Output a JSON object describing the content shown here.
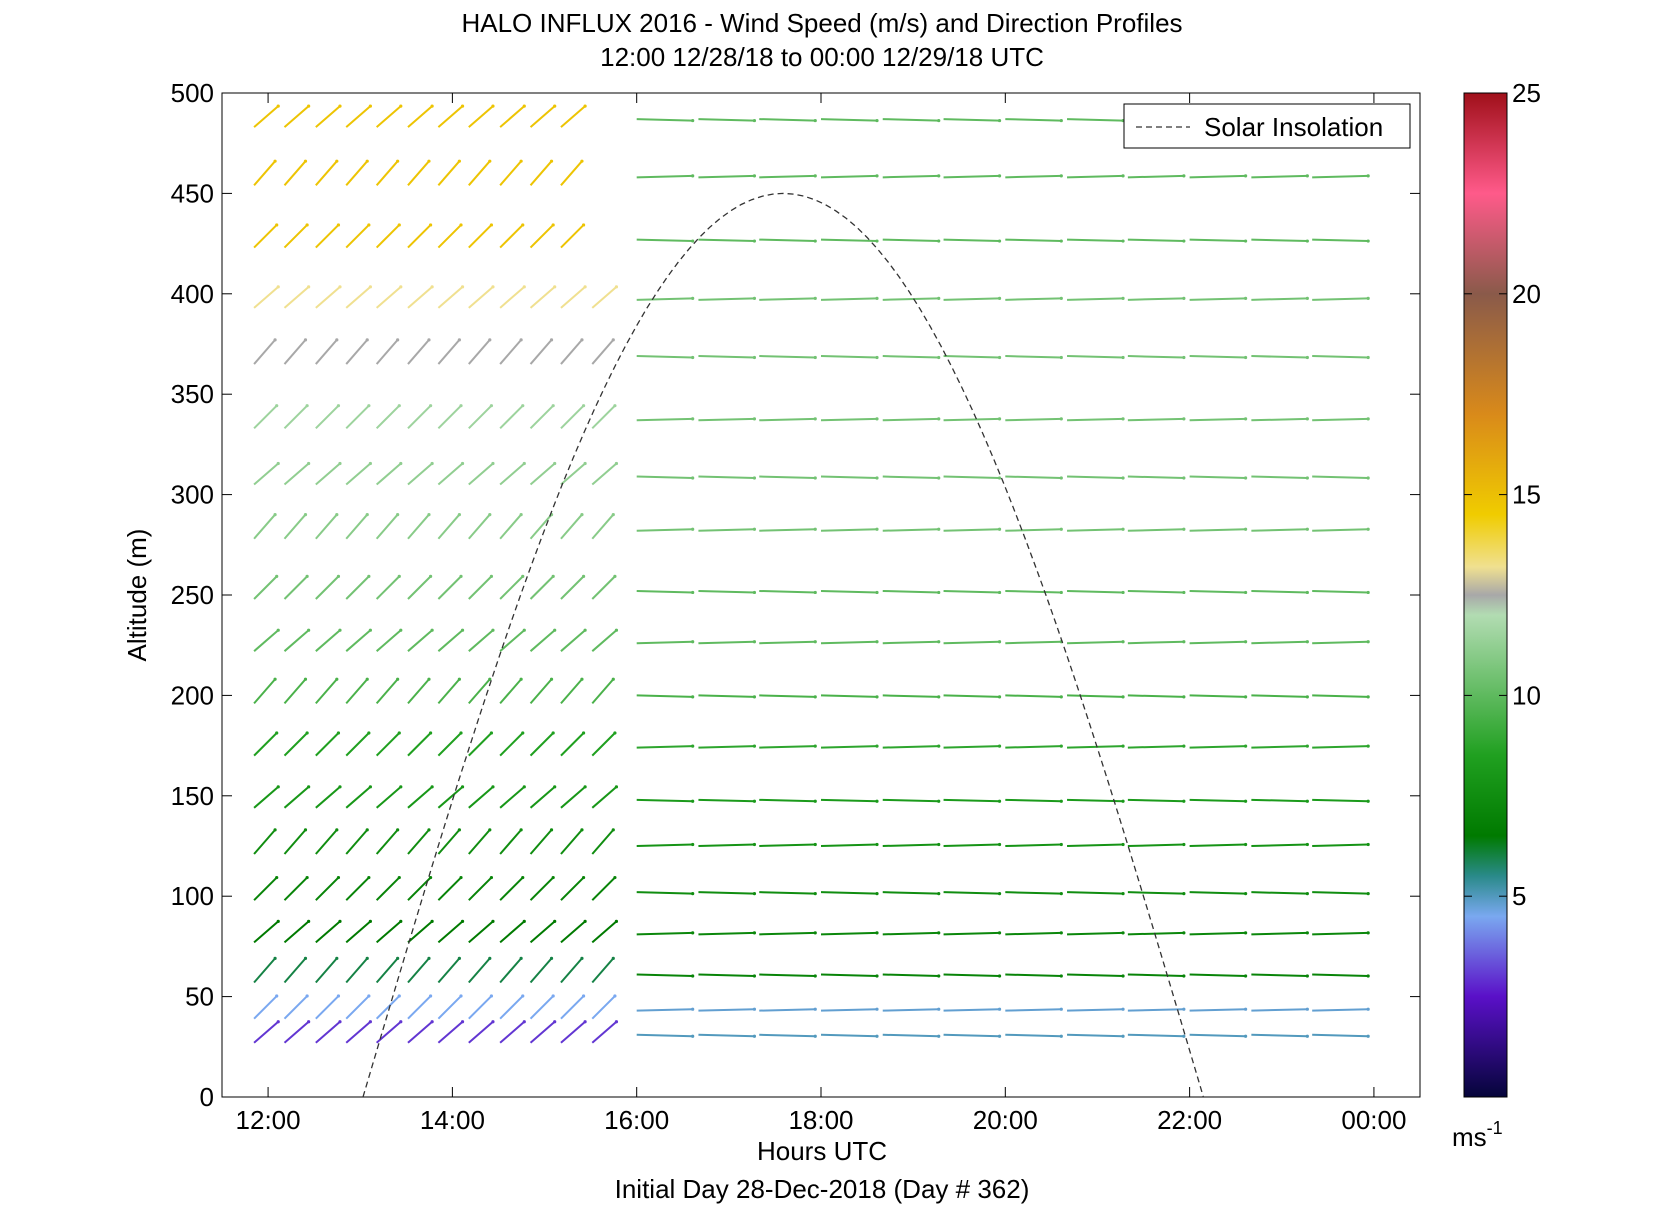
{
  "chart_data": {
    "type": "wind-barb-profile",
    "title": "HALO INFLUX 2016 - Wind Speed (m/s) and Direction Profiles",
    "subtitle": "12:00 12/28/18 to 00:00 12/29/18  UTC",
    "xlabel": "Hours UTC",
    "xlabel2": "Initial Day 28-Dec-2018 (Day # 362)",
    "ylabel": "Altitude (m)",
    "xlim": [
      11.5,
      24.5
    ],
    "ylim": [
      0,
      500
    ],
    "xticks": [
      12,
      14,
      16,
      18,
      20,
      22,
      24
    ],
    "xtick_labels": [
      "12:00",
      "14:00",
      "16:00",
      "18:00",
      "20:00",
      "22:00",
      "00:00"
    ],
    "yticks": [
      0,
      50,
      100,
      150,
      200,
      250,
      300,
      350,
      400,
      450,
      500
    ],
    "ytick_labels": [
      "0",
      "50",
      "100",
      "150",
      "200",
      "250",
      "300",
      "350",
      "400",
      "450",
      "500"
    ],
    "legend": {
      "entries": [
        "Solar Insolation"
      ],
      "position": "top-right",
      "style": "dashed"
    },
    "colorbar": {
      "min": 0,
      "max": 25,
      "ticks": [
        5,
        10,
        15,
        20,
        25
      ],
      "tick_labels": [
        "5",
        "10",
        "15",
        "20",
        "25"
      ],
      "unit_label": "ms",
      "unit_exp": "-1",
      "stops": [
        {
          "v": 0,
          "c": "#05053a"
        },
        {
          "v": 2.5,
          "c": "#5a10c8"
        },
        {
          "v": 4.5,
          "c": "#7aa8f0"
        },
        {
          "v": 5.5,
          "c": "#2a8a8a"
        },
        {
          "v": 6.5,
          "c": "#007a00"
        },
        {
          "v": 8.5,
          "c": "#20a020"
        },
        {
          "v": 12.0,
          "c": "#b2dcb2"
        },
        {
          "v": 12.5,
          "c": "#a8a8a8"
        },
        {
          "v": 13.2,
          "c": "#f0e090"
        },
        {
          "v": 14.5,
          "c": "#f0cc00"
        },
        {
          "v": 17.0,
          "c": "#d98a1a"
        },
        {
          "v": 20.0,
          "c": "#8a5a4a"
        },
        {
          "v": 22.5,
          "c": "#ff5a8a"
        },
        {
          "v": 25.0,
          "c": "#a0101a"
        }
      ]
    },
    "solar_insolation": {
      "start_hour": 13.03,
      "end_hour": 22.15,
      "peak_altitude": 450
    },
    "altitudes": [
      31,
      43,
      61,
      81,
      102,
      125,
      148,
      174,
      200,
      226,
      252,
      282,
      309,
      337,
      369,
      397,
      427,
      458,
      487
    ],
    "barbs_morning": {
      "hours": [
        12.0,
        12.33,
        12.67,
        13.0,
        13.33,
        13.67,
        14.0,
        14.33,
        14.67,
        15.0,
        15.33,
        15.67
      ],
      "direction_deg": 45,
      "speed_by_level": [
        3,
        4.5,
        6,
        6.5,
        7,
        7.5,
        8,
        8.5,
        9.5,
        10,
        10.5,
        11,
        11.2,
        11.5,
        12.5,
        13.2,
        14.8,
        14.8,
        14.8
      ],
      "missing_above_400_after": 15.5
    },
    "barbs_afternoon": {
      "hours": [
        16.0,
        16.67,
        17.33,
        18.0,
        18.67,
        19.33,
        20.0,
        20.67,
        21.33,
        22.0,
        22.67,
        23.33
      ],
      "direction_deg": 270,
      "speed_by_level": [
        5,
        4.8,
        7,
        7.2,
        7.5,
        7.8,
        8.2,
        8.8,
        9.5,
        10,
        10,
        10.5,
        10.5,
        10.5,
        10.5,
        10.5,
        10,
        10,
        10
      ]
    }
  }
}
